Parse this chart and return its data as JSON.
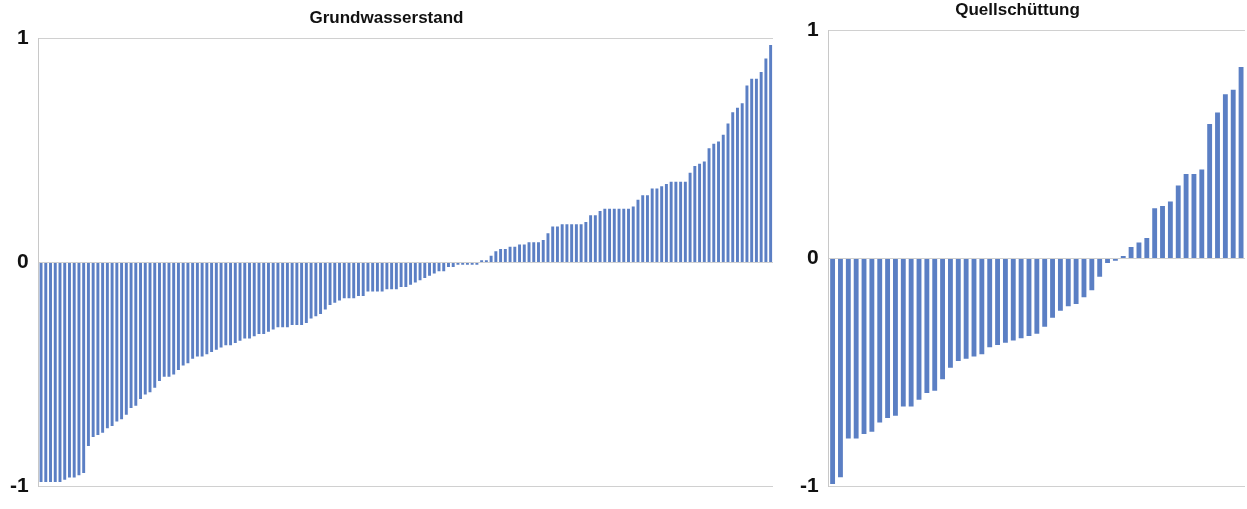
{
  "chart_data": [
    {
      "type": "bar",
      "title": "Grundwasserstand",
      "color": "#5b7fc4",
      "ylim": [
        -1,
        1
      ],
      "yticks": [
        -1,
        0,
        1
      ],
      "grid": "y",
      "tick_labels": "y",
      "categories": [
        null,
        null,
        null,
        null,
        null,
        null,
        null,
        null,
        null,
        null,
        null,
        null,
        null,
        null,
        null,
        null,
        null,
        null,
        null,
        null,
        null,
        null,
        null,
        null,
        null,
        null,
        null,
        null,
        null,
        null,
        null,
        null,
        null,
        null,
        null,
        null,
        null,
        null,
        null,
        null,
        null,
        null,
        null,
        null,
        null,
        null,
        null,
        null,
        null,
        null,
        null,
        null,
        null,
        null,
        null,
        null,
        null,
        null,
        null,
        null,
        null,
        null,
        null,
        null,
        null,
        null,
        null,
        null,
        null,
        null,
        null,
        null,
        null,
        null,
        null,
        null,
        null,
        null,
        null,
        null,
        null,
        null,
        null,
        null,
        null,
        null,
        null,
        null,
        null,
        null,
        null,
        null,
        null,
        null,
        null,
        null,
        null,
        null,
        null,
        null,
        null,
        null,
        null,
        null,
        null,
        null,
        null,
        null,
        null,
        null,
        null,
        null,
        null,
        null,
        null,
        null,
        null,
        null,
        null,
        null,
        null,
        null,
        null,
        null,
        null,
        null,
        null,
        null,
        null,
        null,
        null,
        null,
        null,
        null,
        null,
        null,
        null,
        null,
        null,
        null,
        null,
        null,
        null,
        null,
        null,
        null,
        null,
        null,
        null,
        null,
        null,
        null,
        null,
        null,
        null
      ],
      "values": [
        -0.98,
        -0.98,
        -0.98,
        -0.98,
        -0.98,
        -0.97,
        -0.96,
        -0.96,
        -0.95,
        -0.94,
        -0.82,
        -0.78,
        -0.77,
        -0.76,
        -0.74,
        -0.73,
        -0.71,
        -0.7,
        -0.68,
        -0.65,
        -0.64,
        -0.61,
        -0.59,
        -0.58,
        -0.56,
        -0.53,
        -0.51,
        -0.51,
        -0.5,
        -0.48,
        -0.46,
        -0.45,
        -0.43,
        -0.42,
        -0.42,
        -0.41,
        -0.4,
        -0.39,
        -0.38,
        -0.37,
        -0.37,
        -0.36,
        -0.35,
        -0.34,
        -0.34,
        -0.33,
        -0.32,
        -0.32,
        -0.31,
        -0.3,
        -0.29,
        -0.29,
        -0.29,
        -0.28,
        -0.28,
        -0.28,
        -0.27,
        -0.25,
        -0.24,
        -0.23,
        -0.21,
        -0.19,
        -0.18,
        -0.17,
        -0.16,
        -0.16,
        -0.16,
        -0.15,
        -0.15,
        -0.13,
        -0.13,
        -0.13,
        -0.13,
        -0.12,
        -0.12,
        -0.12,
        -0.11,
        -0.11,
        -0.1,
        -0.09,
        -0.08,
        -0.07,
        -0.06,
        -0.05,
        -0.04,
        -0.04,
        -0.02,
        -0.02,
        -0.01,
        -0.01,
        -0.01,
        -0.01,
        -0.01,
        0.01,
        0.01,
        0.03,
        0.05,
        0.06,
        0.06,
        0.07,
        0.07,
        0.08,
        0.08,
        0.09,
        0.09,
        0.09,
        0.1,
        0.13,
        0.16,
        0.16,
        0.17,
        0.17,
        0.17,
        0.17,
        0.17,
        0.18,
        0.21,
        0.21,
        0.23,
        0.24,
        0.24,
        0.24,
        0.24,
        0.24,
        0.24,
        0.25,
        0.28,
        0.3,
        0.3,
        0.33,
        0.33,
        0.34,
        0.35,
        0.36,
        0.36,
        0.36,
        0.36,
        0.4,
        0.43,
        0.44,
        0.45,
        0.51,
        0.53,
        0.54,
        0.57,
        0.62,
        0.67,
        0.69,
        0.71,
        0.79,
        0.82,
        0.82,
        0.85,
        0.91,
        0.97
      ]
    },
    {
      "type": "bar",
      "title": "Quellschüttung",
      "color": "#5b7fc4",
      "ylim": [
        -1,
        1
      ],
      "yticks": [
        -1,
        0,
        1
      ],
      "grid": "y",
      "tick_labels": "y",
      "categories": [
        null,
        null,
        null,
        null,
        null,
        null,
        null,
        null,
        null,
        null,
        null,
        null,
        null,
        null,
        null,
        null,
        null,
        null,
        null,
        null,
        null,
        null,
        null,
        null,
        null,
        null,
        null,
        null,
        null,
        null,
        null,
        null,
        null,
        null,
        null,
        null,
        null,
        null,
        null,
        null,
        null,
        null,
        null,
        null,
        null,
        null,
        null,
        null,
        null,
        null,
        null,
        null,
        null
      ],
      "values": [
        -0.99,
        -0.96,
        -0.79,
        -0.79,
        -0.77,
        -0.76,
        -0.72,
        -0.7,
        -0.69,
        -0.65,
        -0.65,
        -0.62,
        -0.59,
        -0.58,
        -0.53,
        -0.48,
        -0.45,
        -0.44,
        -0.43,
        -0.42,
        -0.39,
        -0.38,
        -0.37,
        -0.36,
        -0.35,
        -0.34,
        -0.33,
        -0.3,
        -0.26,
        -0.23,
        -0.21,
        -0.2,
        -0.17,
        -0.14,
        -0.08,
        -0.02,
        -0.01,
        0.01,
        0.05,
        0.07,
        0.09,
        0.22,
        0.23,
        0.25,
        0.32,
        0.37,
        0.37,
        0.39,
        0.59,
        0.64,
        0.72,
        0.74,
        0.84
      ]
    }
  ]
}
